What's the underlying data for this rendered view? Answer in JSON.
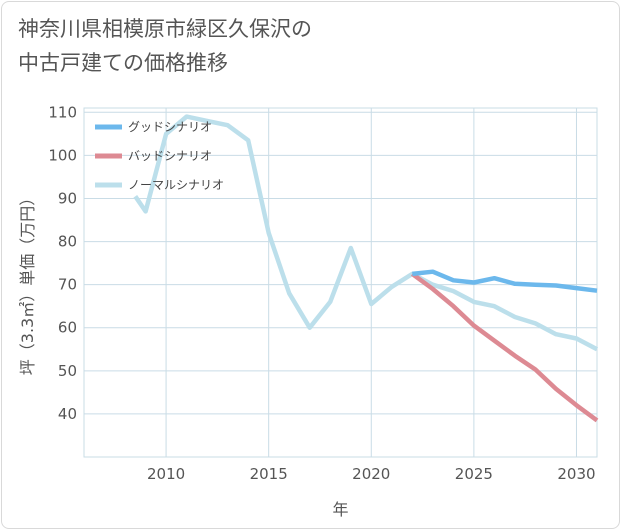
{
  "chart_data": {
    "type": "line",
    "title_lines": [
      "神奈川県相模原市緑区久保沢の",
      "中古戸建ての価格推移"
    ],
    "xlabel": "年",
    "ylabel": "坪（3.3㎡）単価（万円）",
    "xlim": [
      2006,
      2031
    ],
    "ylim": [
      30,
      111
    ],
    "x_ticks": [
      2010,
      2015,
      2020,
      2025,
      2030
    ],
    "y_ticks": [
      40,
      50,
      60,
      70,
      80,
      90,
      100,
      110
    ],
    "grid": true,
    "legend_position": "top-left",
    "series": [
      {
        "name": "グッドシナリオ",
        "color": "#6cb8ec",
        "points": [
          [
            2022,
            72.5
          ],
          [
            2023,
            73
          ],
          [
            2024,
            71
          ],
          [
            2025,
            70.5
          ],
          [
            2026,
            71.5
          ],
          [
            2027,
            70.2
          ],
          [
            2028,
            70
          ],
          [
            2029,
            69.8
          ],
          [
            2030,
            69.2
          ],
          [
            2031,
            68.6
          ]
        ]
      },
      {
        "name": "バッドシナリオ",
        "color": "#dd8a93",
        "points": [
          [
            2022,
            72.5
          ],
          [
            2023,
            69
          ],
          [
            2024,
            65
          ],
          [
            2025,
            60.5
          ],
          [
            2026,
            57
          ],
          [
            2027,
            53.5
          ],
          [
            2028,
            50.3
          ],
          [
            2029,
            45.8
          ],
          [
            2030,
            42
          ],
          [
            2031,
            38.5
          ]
        ]
      },
      {
        "name": "ノーマルシナリオ",
        "color": "#bcdfeb",
        "points": [
          [
            2008.5,
            90.5
          ],
          [
            2009,
            87
          ],
          [
            2010,
            105
          ],
          [
            2011,
            109
          ],
          [
            2012,
            108
          ],
          [
            2013,
            107
          ],
          [
            2014,
            103.5
          ],
          [
            2015,
            82
          ],
          [
            2016,
            68
          ],
          [
            2017,
            60
          ],
          [
            2018,
            66
          ],
          [
            2019,
            78.5
          ],
          [
            2020,
            65.5
          ],
          [
            2021,
            69.5
          ],
          [
            2022,
            72.5
          ],
          [
            2023,
            70
          ],
          [
            2024,
            68.5
          ],
          [
            2025,
            66
          ],
          [
            2026,
            65
          ],
          [
            2027,
            62.5
          ],
          [
            2028,
            61
          ],
          [
            2029,
            58.5
          ],
          [
            2030,
            57.5
          ],
          [
            2031,
            55
          ]
        ]
      }
    ]
  }
}
